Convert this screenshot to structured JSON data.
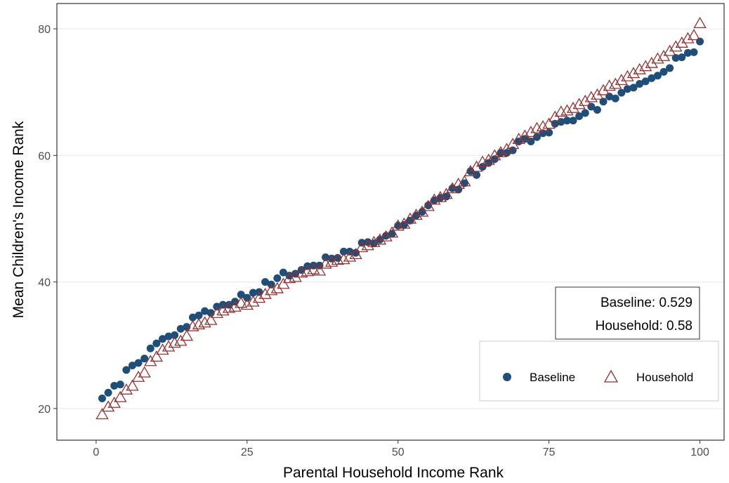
{
  "chart_data": {
    "type": "scatter",
    "xlabel": "Parental Household Income Rank",
    "ylabel": "Mean Children's Income Rank",
    "xlim": [
      -6.5,
      104
    ],
    "ylim": [
      15,
      84
    ],
    "xticks": [
      0,
      25,
      50,
      75,
      100
    ],
    "yticks": [
      20,
      40,
      60,
      80
    ],
    "grid": "horizontal",
    "legend_position": "bottom-right",
    "colors": {
      "baseline": "#1f4e79",
      "household": "#943232"
    },
    "annotation": {
      "lines": [
        "Baseline: 0.529",
        "Household: 0.58"
      ],
      "position": "right"
    },
    "series": [
      {
        "name": "Baseline",
        "marker": "circle",
        "x": [
          1,
          2,
          3,
          4,
          5,
          6,
          7,
          8,
          9,
          10,
          11,
          12,
          13,
          14,
          15,
          16,
          17,
          18,
          19,
          20,
          21,
          22,
          23,
          24,
          25,
          26,
          27,
          28,
          29,
          30,
          31,
          32,
          33,
          34,
          35,
          36,
          37,
          38,
          39,
          40,
          41,
          42,
          43,
          44,
          45,
          46,
          47,
          48,
          49,
          50,
          51,
          52,
          53,
          54,
          55,
          56,
          57,
          58,
          59,
          60,
          61,
          62,
          63,
          64,
          65,
          66,
          67,
          68,
          69,
          70,
          71,
          72,
          73,
          74,
          75,
          76,
          77,
          78,
          79,
          80,
          81,
          82,
          83,
          84,
          85,
          86,
          87,
          88,
          89,
          90,
          91,
          92,
          93,
          94,
          95,
          96,
          97,
          98,
          99,
          100
        ],
        "y": [
          21.6,
          22.5,
          23.6,
          23.8,
          26.1,
          26.8,
          27.2,
          27.9,
          29.5,
          30.3,
          31.0,
          31.4,
          31.6,
          32.6,
          32.9,
          34.4,
          34.7,
          35.4,
          35.1,
          36.1,
          36.4,
          36.4,
          36.9,
          38.0,
          37.5,
          38.3,
          38.4,
          40.0,
          39.6,
          40.6,
          41.5,
          41.0,
          41.3,
          41.9,
          42.5,
          42.6,
          42.6,
          43.9,
          43.7,
          43.8,
          44.8,
          44.8,
          44.6,
          46.2,
          46.3,
          46.1,
          46.7,
          47.3,
          47.6,
          48.9,
          49.0,
          49.7,
          50.5,
          51.1,
          52.1,
          52.9,
          53.3,
          53.5,
          54.8,
          54.6,
          55.6,
          57.5,
          56.9,
          58.2,
          58.8,
          59.4,
          60.4,
          60.4,
          60.8,
          62.2,
          62.6,
          62.2,
          62.9,
          63.5,
          63.6,
          65.0,
          65.3,
          65.5,
          65.5,
          66.2,
          66.7,
          67.7,
          67.2,
          68.5,
          69.3,
          69.0,
          69.9,
          70.5,
          70.7,
          71.3,
          71.7,
          72.2,
          72.6,
          73.2,
          73.8,
          75.4,
          75.5,
          76.2,
          76.3,
          78.0
        ]
      },
      {
        "name": "Household",
        "marker": "triangle",
        "x": [
          1,
          2,
          3,
          4,
          5,
          6,
          7,
          8,
          9,
          10,
          11,
          12,
          13,
          14,
          15,
          16,
          17,
          18,
          19,
          20,
          21,
          22,
          23,
          24,
          25,
          26,
          27,
          28,
          29,
          30,
          31,
          32,
          33,
          34,
          35,
          36,
          37,
          38,
          39,
          40,
          41,
          42,
          43,
          44,
          45,
          46,
          47,
          48,
          49,
          50,
          51,
          52,
          53,
          54,
          55,
          56,
          57,
          58,
          59,
          60,
          61,
          62,
          63,
          64,
          65,
          66,
          67,
          68,
          69,
          70,
          71,
          72,
          73,
          74,
          75,
          76,
          77,
          78,
          79,
          80,
          81,
          82,
          83,
          84,
          85,
          86,
          87,
          88,
          89,
          90,
          91,
          92,
          93,
          94,
          95,
          96,
          97,
          98,
          99,
          100
        ],
        "y": [
          19.0,
          20.2,
          20.8,
          21.7,
          22.9,
          23.5,
          24.9,
          25.6,
          27.4,
          28.1,
          29.2,
          29.7,
          30.3,
          30.6,
          31.4,
          32.9,
          33.2,
          33.5,
          33.9,
          35.0,
          35.4,
          35.8,
          36.0,
          36.6,
          36.3,
          36.8,
          37.4,
          38.0,
          38.6,
          38.9,
          39.6,
          40.5,
          40.7,
          41.4,
          41.6,
          41.9,
          41.7,
          42.8,
          43.1,
          43.4,
          43.5,
          43.9,
          44.3,
          45.4,
          45.7,
          46.2,
          46.6,
          47.1,
          47.7,
          48.8,
          49.1,
          49.9,
          50.5,
          51.0,
          51.9,
          52.9,
          53.3,
          53.8,
          54.7,
          55.4,
          55.8,
          57.4,
          58.1,
          58.9,
          59.2,
          59.9,
          60.4,
          60.9,
          61.7,
          62.5,
          63.0,
          63.6,
          64.2,
          64.5,
          64.9,
          66.0,
          66.8,
          67.0,
          67.4,
          68.0,
          68.5,
          69.1,
          69.5,
          70.2,
          70.9,
          71.2,
          71.8,
          72.4,
          72.9,
          73.5,
          74.0,
          74.5,
          75.2,
          75.6,
          76.4,
          77.1,
          77.7,
          78.4,
          78.9,
          80.8
        ]
      }
    ]
  }
}
